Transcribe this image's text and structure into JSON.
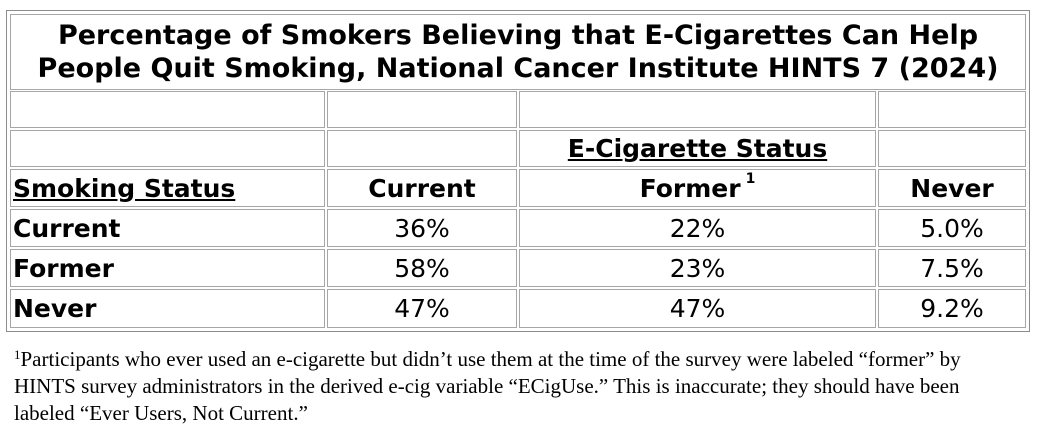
{
  "title": {
    "line1": "Percentage of Smokers Believing that E-Cigarettes Can Help",
    "line2": "People Quit Smoking, National Cancer Institute HINTS 7 (2024)"
  },
  "header": {
    "group_label": "E-Cigarette Status",
    "row_header": "Smoking Status",
    "columns": [
      "Current",
      "Former",
      "Never"
    ],
    "footnote_marker": "1"
  },
  "rows": [
    {
      "label": "Current",
      "values": [
        "36%",
        "22%",
        "5.0%"
      ]
    },
    {
      "label": "Former",
      "values": [
        "58%",
        "23%",
        "7.5%"
      ]
    },
    {
      "label": "Never",
      "values": [
        "47%",
        "47%",
        "9.2%"
      ]
    }
  ],
  "footnote": {
    "marker": "1",
    "text": "Participants who ever used an e-cigarette but didn’t use them at the time of the survey were labeled “former” by HINTS survey administrators in the derived e-cig variable “ECigUse.”  This is inaccurate; they should have been labeled “Ever Users, Not Current.”"
  }
}
